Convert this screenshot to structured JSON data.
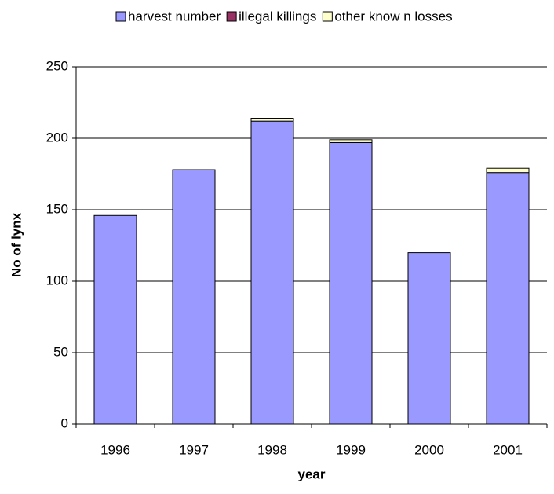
{
  "chart_data": {
    "type": "stacked_bar",
    "categories": [
      "1996",
      "1997",
      "1998",
      "1999",
      "2000",
      "2001"
    ],
    "series": [
      {
        "name": "harvest number",
        "color": "#9999ff",
        "values": [
          146,
          178,
          212,
          197,
          120,
          176
        ]
      },
      {
        "name": "illegal killings",
        "color": "#993366",
        "values": [
          0,
          0,
          0,
          0,
          0,
          0
        ]
      },
      {
        "name": "other know n losses",
        "color": "#ffffcc",
        "values": [
          0,
          0,
          2,
          2,
          0,
          3
        ]
      }
    ],
    "xlabel": "year",
    "ylabel": "No of lynx",
    "ylim": [
      0,
      250
    ],
    "yticks": [
      0,
      50,
      100,
      150,
      200,
      250
    ],
    "grid": true,
    "legend": "top"
  }
}
